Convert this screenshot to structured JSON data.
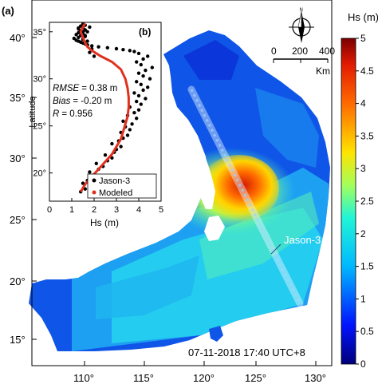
{
  "panel_a": {
    "label": "(a)",
    "lon_ticks": [
      "110°",
      "115°",
      "120°",
      "125°",
      "130°"
    ],
    "lat_ticks": [
      "15°",
      "20°",
      "25°",
      "30°",
      "35°",
      "40°"
    ],
    "timestamp": "07-11-2018 17:40 UTC+8",
    "track_label": "Jason-3",
    "north_label": "N",
    "scale_ticks": [
      "0",
      "200",
      "400"
    ],
    "scale_unit": "Km"
  },
  "colorbar": {
    "title": "Hs (m)",
    "ticks": [
      "0",
      "0.5",
      "1",
      "1.5",
      "2",
      "2.5",
      "3",
      "3.5",
      "4",
      "4.5",
      "5"
    ],
    "range": [
      0,
      5
    ]
  },
  "panel_b": {
    "label": "(b)",
    "ylabel": "Latitude",
    "xlabel": "Hs (m)",
    "x_ticks": [
      "0",
      "1",
      "2",
      "3",
      "4",
      "5"
    ],
    "y_ticks": [
      "20°",
      "25°",
      "30°",
      "35°"
    ],
    "stats": [
      {
        "name": "RMSE",
        "value": "= 0.38 m"
      },
      {
        "name": "Bias",
        "value": "= -0.20 m"
      },
      {
        "name": "R",
        "value": "= 0.956"
      }
    ],
    "legend": [
      {
        "label": "Jason-3",
        "color": "#000000"
      },
      {
        "label": "Modeled",
        "color": "#e2301e"
      }
    ]
  },
  "chart_data": {
    "type": "scatter",
    "xlabel": "Hs (m)",
    "ylabel": "Latitude",
    "xlim": [
      0,
      5
    ],
    "ylim": [
      17,
      36
    ],
    "series": [
      {
        "name": "Jason-3",
        "type": "scatter",
        "x": [
          1.4,
          1.6,
          1.8,
          1.5,
          1.7,
          1.9,
          2.0,
          1.8,
          2.2,
          2.4,
          2.1,
          2.6,
          2.8,
          2.5,
          2.9,
          3.0,
          3.2,
          2.8,
          3.1,
          3.3,
          3.5,
          3.2,
          3.6,
          3.4,
          3.7,
          3.3,
          3.9,
          3.5,
          3.8,
          4.0,
          3.6,
          4.1,
          3.9,
          4.3,
          4.0,
          3.8,
          4.2,
          4.4,
          4.1,
          3.9,
          4.5,
          4.2,
          4.0,
          4.3,
          4.6,
          4.1,
          3.9,
          4.2,
          4.4,
          4.0,
          3.8,
          3.6,
          3.3,
          3.0,
          2.6,
          2.2,
          1.9,
          1.7,
          1.6,
          1.5,
          1.4,
          1.3,
          1.2,
          1.5,
          1.1,
          1.3,
          1.6,
          1.4,
          1.2,
          1.5,
          1.3,
          1.7,
          1.4,
          1.6,
          1.3,
          1.5,
          1.8,
          1.4,
          1.6,
          1.5,
          1.7,
          1.9,
          1.8,
          2.0,
          1.6,
          1.5,
          1.3,
          1.7
        ],
        "y": [
          18.0,
          18.3,
          18.6,
          18.9,
          19.2,
          19.5,
          19.8,
          20.1,
          20.4,
          20.7,
          21.0,
          21.3,
          21.6,
          21.9,
          22.2,
          22.5,
          22.8,
          23.1,
          23.4,
          23.7,
          24.0,
          24.3,
          24.6,
          24.9,
          25.2,
          25.5,
          25.8,
          26.1,
          26.4,
          26.7,
          27.0,
          27.3,
          27.6,
          27.9,
          28.2,
          28.5,
          28.8,
          29.1,
          29.4,
          29.7,
          30.0,
          30.3,
          30.6,
          30.9,
          31.2,
          31.5,
          31.8,
          32.1,
          32.4,
          32.7,
          32.9,
          33.0,
          33.1,
          33.2,
          33.3,
          33.4,
          33.5,
          33.6,
          33.7,
          33.8,
          33.9,
          34.0,
          34.1,
          34.2,
          34.3,
          34.4,
          34.5,
          34.6,
          34.7,
          34.8,
          34.9,
          35.0,
          35.1,
          35.2,
          35.3,
          35.4,
          35.5,
          35.6,
          35.7,
          35.8,
          33.6,
          33.2,
          32.8,
          32.4,
          34.6,
          35.0,
          35.4,
          34.0
        ]
      },
      {
        "name": "Modeled",
        "type": "line",
        "x": [
          1.4,
          1.6,
          1.9,
          2.2,
          2.5,
          2.8,
          3.0,
          3.2,
          3.3,
          3.4,
          3.5,
          3.55,
          3.55,
          3.5,
          3.4,
          3.2,
          2.8,
          2.3,
          1.9,
          1.7,
          1.6,
          1.5,
          1.4,
          1.5,
          1.6
        ],
        "y": [
          18.0,
          18.8,
          19.6,
          20.4,
          21.2,
          22.0,
          22.8,
          23.6,
          24.4,
          25.2,
          26.0,
          27.0,
          28.0,
          29.0,
          30.0,
          31.0,
          31.8,
          32.4,
          33.0,
          33.4,
          33.8,
          34.4,
          35.0,
          35.5,
          35.9
        ]
      }
    ]
  }
}
